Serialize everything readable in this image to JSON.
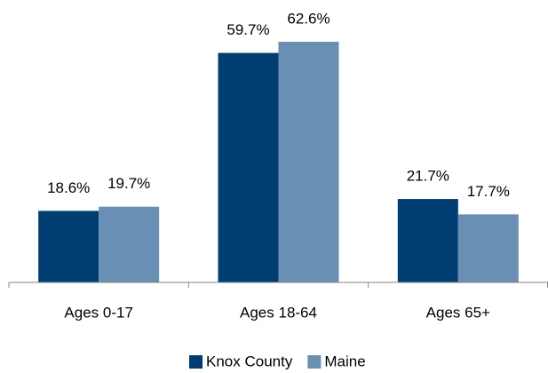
{
  "chart_data": {
    "type": "bar",
    "categories": [
      "Ages 0-17",
      "Ages 18-64",
      "Ages 65+"
    ],
    "series": [
      {
        "name": "Knox County",
        "color": "#003d73",
        "values": [
          18.6,
          59.7,
          21.7
        ],
        "value_labels": [
          "18.6%",
          "59.7%",
          "21.7%"
        ]
      },
      {
        "name": "Maine",
        "color": "#6a8fb4",
        "values": [
          19.7,
          62.6,
          17.7
        ],
        "value_labels": [
          "19.7%",
          "62.6%",
          "17.7%"
        ]
      }
    ],
    "ylim": [
      0,
      70
    ],
    "legend": "bottom"
  }
}
